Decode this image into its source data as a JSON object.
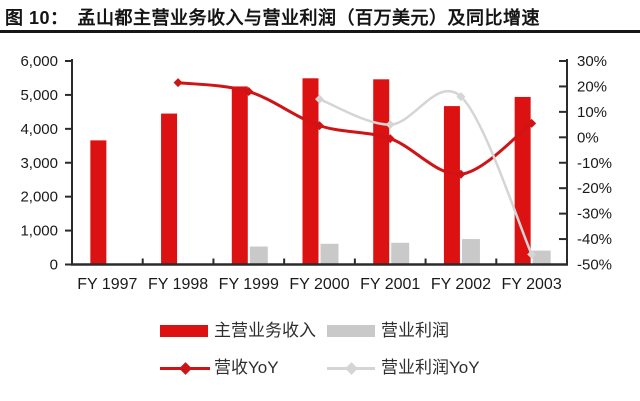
{
  "header": {
    "figure_label": "图 10：",
    "title": "孟山都主营业务收入与营业利润（百万美元）及同比增速"
  },
  "chart_data": {
    "type": "combo bar-line",
    "title": "孟山都主营业务收入与营业利润（百万美元）及同比增速",
    "categories": [
      "FY 1997",
      "FY 1998",
      "FY 1999",
      "FY 2000",
      "FY 2001",
      "FY 2002",
      "FY 2003"
    ],
    "series": [
      {
        "name": "主营业务收入",
        "type": "bar",
        "axis": "left",
        "color": "#dc1111",
        "values": [
          3660,
          4450,
          5250,
          5490,
          5460,
          4670,
          4940
        ]
      },
      {
        "name": "营业利润",
        "type": "bar",
        "axis": "left",
        "color": "#c9c9c9",
        "values": [
          null,
          null,
          530,
          610,
          640,
          750,
          410
        ]
      },
      {
        "name": "营收YoY",
        "type": "line",
        "axis": "right",
        "marker": "diamond",
        "color": "#cf1416",
        "values": [
          null,
          21.5,
          18,
          4.6,
          -0.5,
          -14.5,
          5.5
        ]
      },
      {
        "name": "营业利润YoY",
        "type": "line",
        "axis": "right",
        "marker": "diamond",
        "color": "#d5d5d5",
        "values": [
          null,
          null,
          null,
          15,
          5,
          16,
          -46
        ]
      }
    ],
    "left_axis": {
      "min": 0,
      "max": 6000,
      "tick_values": [
        0,
        1000,
        2000,
        3000,
        4000,
        5000,
        6000
      ],
      "tick_labels": [
        "0",
        "1,000",
        "2,000",
        "3,000",
        "4,000",
        "5,000",
        "6,000"
      ]
    },
    "right_axis": {
      "min": -50,
      "max": 30,
      "tick_values": [
        -50,
        -40,
        -30,
        -20,
        -10,
        0,
        10,
        20,
        30
      ],
      "tick_labels": [
        "-50%",
        "-40%",
        "-30%",
        "-20%",
        "-10%",
        "0%",
        "10%",
        "20%",
        "30%"
      ]
    },
    "grid": false,
    "legend_position": "bottom"
  },
  "style": {
    "axis_color": "#2b2b2b",
    "text_color": "#1a1a1a",
    "rule_color": "#161616",
    "background": "#ffffff"
  }
}
